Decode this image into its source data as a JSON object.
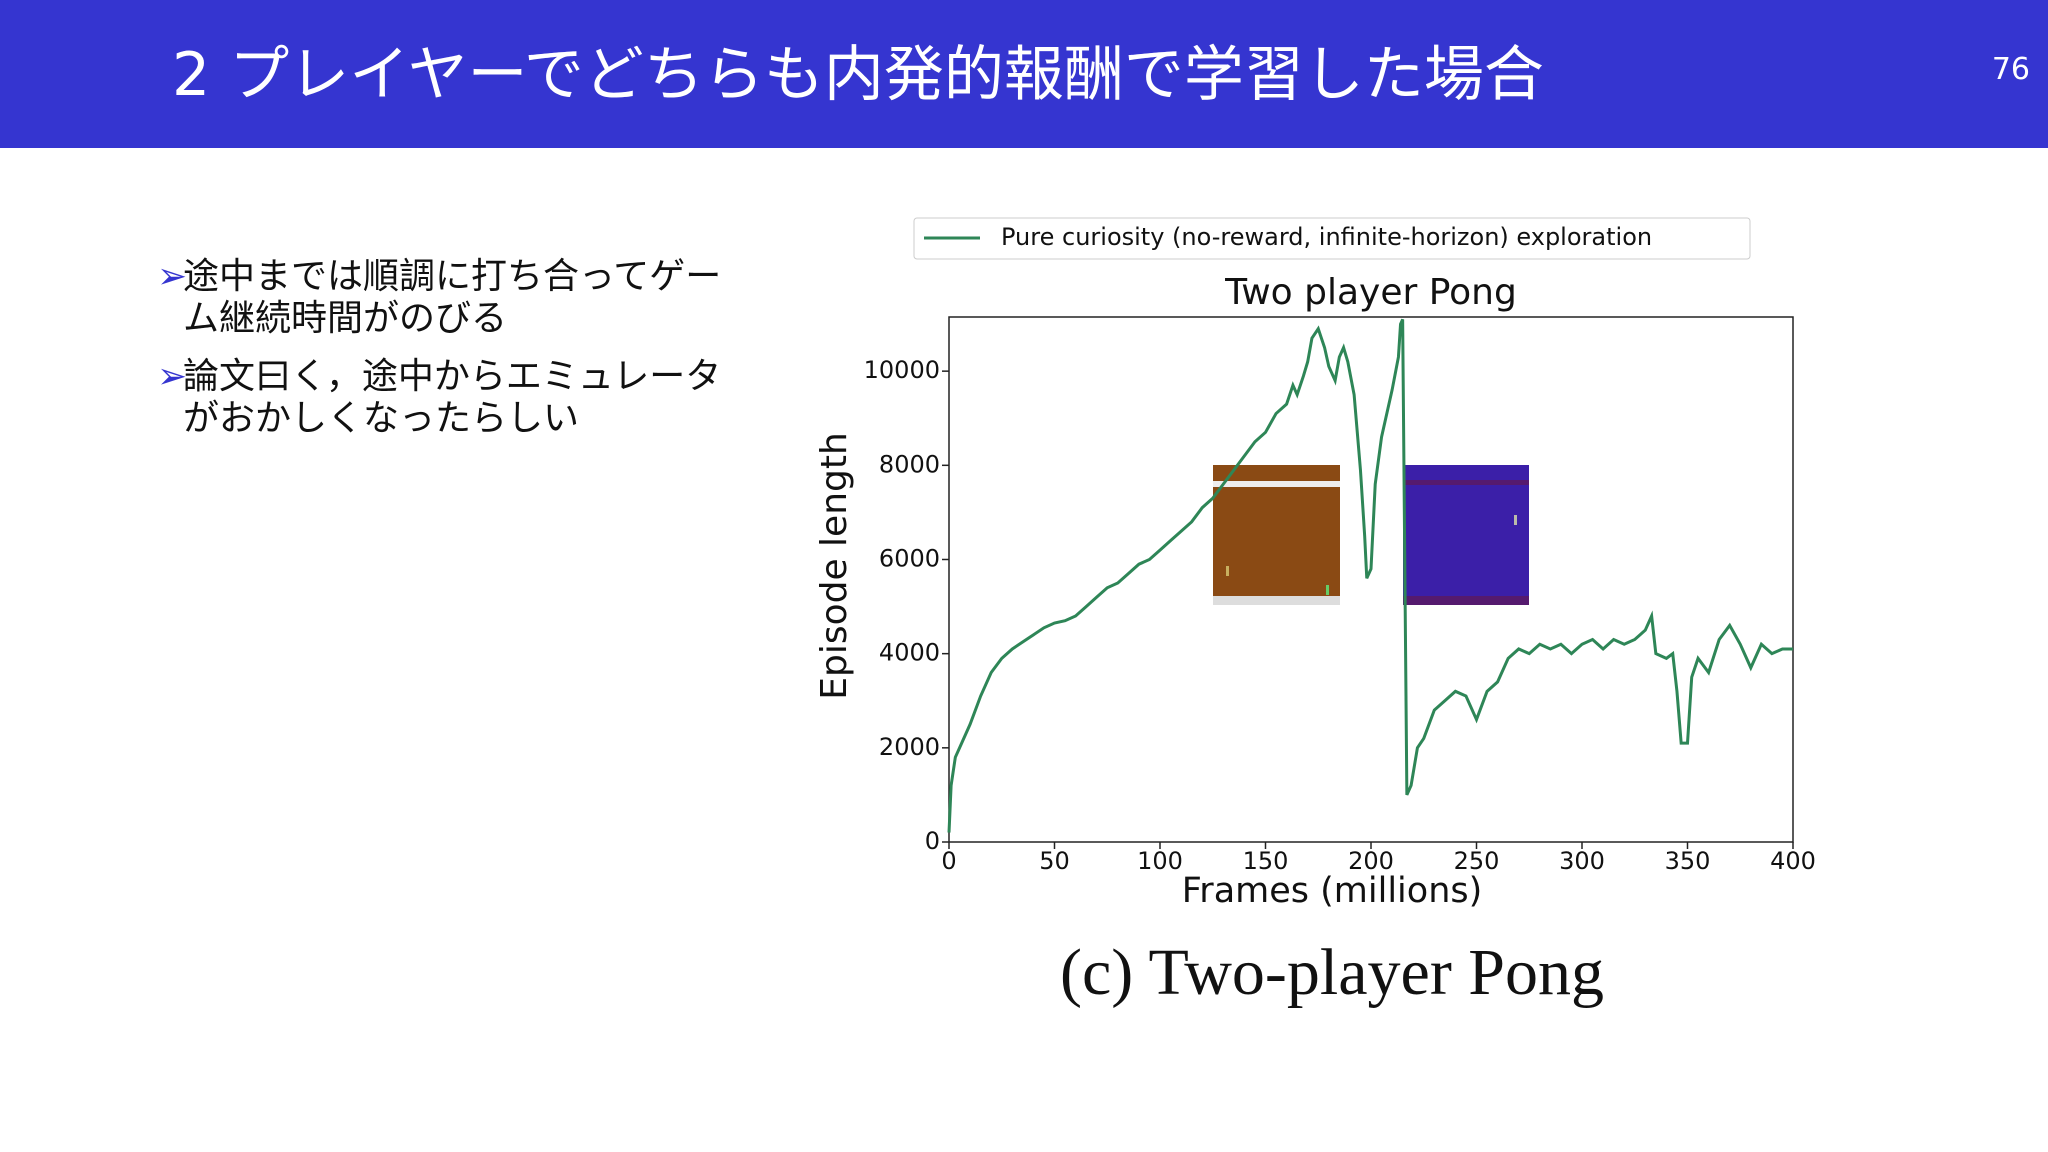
{
  "header": {
    "title": "2 プレイヤーでどちらも内発的報酬で学習した場合",
    "page_number": "76"
  },
  "bullets": [
    "途中までは順調に打ち合ってゲーム継続時間がのびる",
    "論文曰く，途中からエミュレータがおかしくなったらしい"
  ],
  "caption": "(c) Two-player Pong",
  "chart_data": {
    "type": "line",
    "title": "Two player Pong",
    "xlabel": "Frames (millions)",
    "ylabel": "Episode length",
    "legend": "upper center",
    "x": [
      0,
      1,
      3,
      5,
      10,
      15,
      20,
      25,
      30,
      35,
      40,
      45,
      50,
      55,
      60,
      65,
      70,
      75,
      80,
      85,
      90,
      95,
      100,
      105,
      110,
      115,
      120,
      125,
      130,
      135,
      140,
      145,
      150,
      155,
      160,
      163,
      165,
      168,
      170,
      172,
      175,
      178,
      180,
      183,
      185,
      187,
      189,
      192,
      195,
      197,
      198,
      200,
      202,
      205,
      210,
      213,
      214,
      215,
      216,
      217,
      219,
      222,
      225,
      230,
      235,
      240,
      245,
      250,
      255,
      260,
      265,
      270,
      275,
      280,
      285,
      290,
      295,
      300,
      305,
      310,
      315,
      320,
      325,
      330,
      333,
      335,
      340,
      343,
      345,
      347,
      350,
      352,
      355,
      360,
      365,
      370,
      375,
      380,
      385,
      390,
      395,
      400
    ],
    "series": [
      {
        "name": "Pure curiosity (no-reward, infinite-horizon) exploration",
        "color": "#2e8657",
        "values": [
          200,
          1200,
          1800,
          2000,
          2500,
          3100,
          3600,
          3900,
          4100,
          4250,
          4400,
          4550,
          4650,
          4700,
          4800,
          5000,
          5200,
          5400,
          5500,
          5700,
          5900,
          6000,
          6200,
          6400,
          6600,
          6800,
          7100,
          7300,
          7600,
          7900,
          8200,
          8500,
          8700,
          9100,
          9300,
          9700,
          9500,
          9900,
          10200,
          10700,
          10900,
          10500,
          10100,
          9800,
          10300,
          10500,
          10200,
          9500,
          7900,
          6500,
          5600,
          5800,
          7600,
          8600,
          9600,
          10300,
          11000,
          11100,
          6000,
          1000,
          1200,
          2000,
          2200,
          2800,
          3000,
          3200,
          3100,
          2600,
          3200,
          3400,
          3900,
          4100,
          4000,
          4200,
          4100,
          4200,
          4000,
          4200,
          4300,
          4100,
          4300,
          4200,
          4300,
          4500,
          4800,
          4000,
          3900,
          4000,
          3200,
          2100,
          2100,
          3500,
          3900,
          3600,
          4300,
          4600,
          4200,
          3700,
          4200,
          4000,
          4100,
          4100
        ]
      }
    ],
    "xlim": [
      0,
      400
    ],
    "xticks": [
      0,
      50,
      100,
      150,
      200,
      250,
      300,
      350,
      400
    ],
    "ylim": [
      0,
      11150
    ],
    "yticks": [
      0,
      2000,
      4000,
      6000,
      8000,
      10000
    ]
  }
}
